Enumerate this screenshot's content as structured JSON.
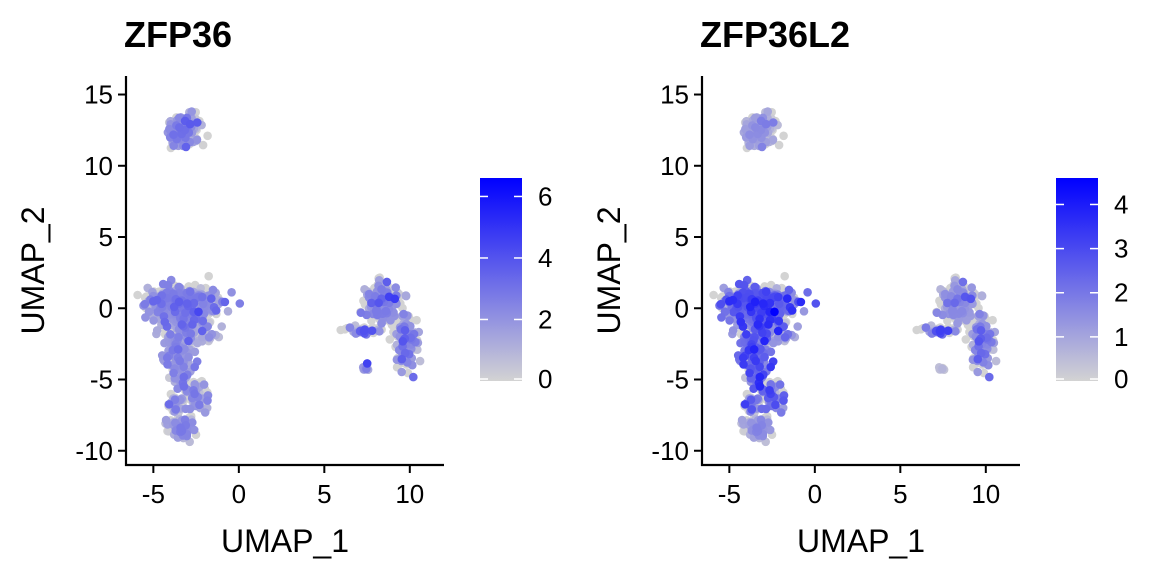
{
  "colors": {
    "low": "#d3d3d3",
    "high": "#0000ff",
    "axis": "#000000",
    "background": "#ffffff"
  },
  "chart_data": [
    {
      "type": "scatter",
      "title": "ZFP36",
      "xlabel": "UMAP_1",
      "ylabel": "UMAP_2",
      "xlim": [
        -6.6,
        12.0
      ],
      "ylim": [
        -11.0,
        16.3
      ],
      "xticks": [
        -5,
        0,
        5,
        10
      ],
      "xtick_labels": [
        "-5",
        "0",
        "5",
        "10"
      ],
      "yticks": [
        -10,
        -5,
        0,
        5,
        10,
        15
      ],
      "ytick_labels": [
        "-10",
        "-5",
        "0",
        "5",
        "10",
        "15"
      ],
      "legend": {
        "placement": "right",
        "range": [
          0,
          6.6
        ],
        "ticks": [
          0,
          2,
          4,
          6
        ],
        "tick_labels": [
          "0",
          "2",
          "4",
          "6"
        ]
      },
      "clusters": [
        {
          "cx": -3.2,
          "cy": 12.5,
          "sx": 0.55,
          "sy": 0.6,
          "n": 170,
          "expr_mean": 1.6
        },
        {
          "cx": -3.4,
          "cy": 0.4,
          "sx": 1.1,
          "sy": 0.6,
          "n": 520,
          "expr_mean": 1.6
        },
        {
          "cx": -2.9,
          "cy": -1.2,
          "sx": 0.8,
          "sy": 0.6,
          "n": 180,
          "expr_mean": 1.6
        },
        {
          "cx": -3.5,
          "cy": -3.4,
          "sx": 0.45,
          "sy": 1.1,
          "n": 200,
          "expr_mean": 1.5
        },
        {
          "cx": -2.4,
          "cy": -6.2,
          "sx": 0.35,
          "sy": 0.6,
          "n": 80,
          "expr_mean": 1.4
        },
        {
          "cx": -3.7,
          "cy": -6.9,
          "sx": 0.25,
          "sy": 0.4,
          "n": 40,
          "expr_mean": 1.4
        },
        {
          "cx": -3.4,
          "cy": -8.3,
          "sx": 0.45,
          "sy": 0.45,
          "n": 90,
          "expr_mean": 1.6
        },
        {
          "cx": 8.4,
          "cy": 0.5,
          "sx": 0.55,
          "sy": 0.75,
          "n": 220,
          "expr_mean": 1.7
        },
        {
          "cx": 9.8,
          "cy": -2.4,
          "sx": 0.35,
          "sy": 1.1,
          "n": 140,
          "expr_mean": 1.7
        },
        {
          "cx": 7.2,
          "cy": -1.5,
          "sx": 0.55,
          "sy": 0.15,
          "n": 35,
          "expr_mean": 1.9
        },
        {
          "cx": 7.35,
          "cy": -4.2,
          "sx": 0.12,
          "sy": 0.12,
          "n": 8,
          "expr_mean": 1.2
        },
        {
          "cx": 7.5,
          "cy": -3.9,
          "sx": 0.05,
          "sy": 0.05,
          "n": 2,
          "expr_mean": 3.6
        }
      ]
    },
    {
      "type": "scatter",
      "title": "ZFP36L2",
      "xlabel": "UMAP_1",
      "ylabel": "UMAP_2",
      "xlim": [
        -6.6,
        12.0
      ],
      "ylim": [
        -11.0,
        16.3
      ],
      "xticks": [
        -5,
        0,
        5,
        10
      ],
      "xtick_labels": [
        "-5",
        "0",
        "5",
        "10"
      ],
      "yticks": [
        -10,
        -5,
        0,
        5,
        10,
        15
      ],
      "ytick_labels": [
        "-10",
        "-5",
        "0",
        "5",
        "10",
        "15"
      ],
      "legend": {
        "placement": "right",
        "range": [
          0,
          4.6
        ],
        "ticks": [
          0,
          1,
          2,
          3,
          4
        ],
        "tick_labels": [
          "0",
          "1",
          "2",
          "3",
          "4"
        ]
      },
      "clusters": [
        {
          "cx": -3.2,
          "cy": 12.5,
          "sx": 0.55,
          "sy": 0.6,
          "n": 170,
          "expr_mean": 0.8
        },
        {
          "cx": -3.4,
          "cy": 0.4,
          "sx": 1.1,
          "sy": 0.6,
          "n": 520,
          "expr_mean": 1.7
        },
        {
          "cx": -2.9,
          "cy": -1.2,
          "sx": 0.8,
          "sy": 0.6,
          "n": 180,
          "expr_mean": 1.7
        },
        {
          "cx": -3.5,
          "cy": -3.4,
          "sx": 0.45,
          "sy": 1.1,
          "n": 200,
          "expr_mean": 1.8
        },
        {
          "cx": -2.4,
          "cy": -6.2,
          "sx": 0.35,
          "sy": 0.6,
          "n": 80,
          "expr_mean": 1.5
        },
        {
          "cx": -3.7,
          "cy": -6.9,
          "sx": 0.25,
          "sy": 0.4,
          "n": 40,
          "expr_mean": 1.4
        },
        {
          "cx": -3.4,
          "cy": -8.3,
          "sx": 0.45,
          "sy": 0.45,
          "n": 90,
          "expr_mean": 1.0
        },
        {
          "cx": 8.4,
          "cy": 0.5,
          "sx": 0.55,
          "sy": 0.75,
          "n": 220,
          "expr_mean": 1.0
        },
        {
          "cx": 9.8,
          "cy": -2.4,
          "sx": 0.35,
          "sy": 1.1,
          "n": 140,
          "expr_mean": 1.2
        },
        {
          "cx": 7.2,
          "cy": -1.5,
          "sx": 0.55,
          "sy": 0.15,
          "n": 35,
          "expr_mean": 1.5
        },
        {
          "cx": 7.35,
          "cy": -4.2,
          "sx": 0.12,
          "sy": 0.12,
          "n": 8,
          "expr_mean": 0.3
        }
      ]
    }
  ]
}
